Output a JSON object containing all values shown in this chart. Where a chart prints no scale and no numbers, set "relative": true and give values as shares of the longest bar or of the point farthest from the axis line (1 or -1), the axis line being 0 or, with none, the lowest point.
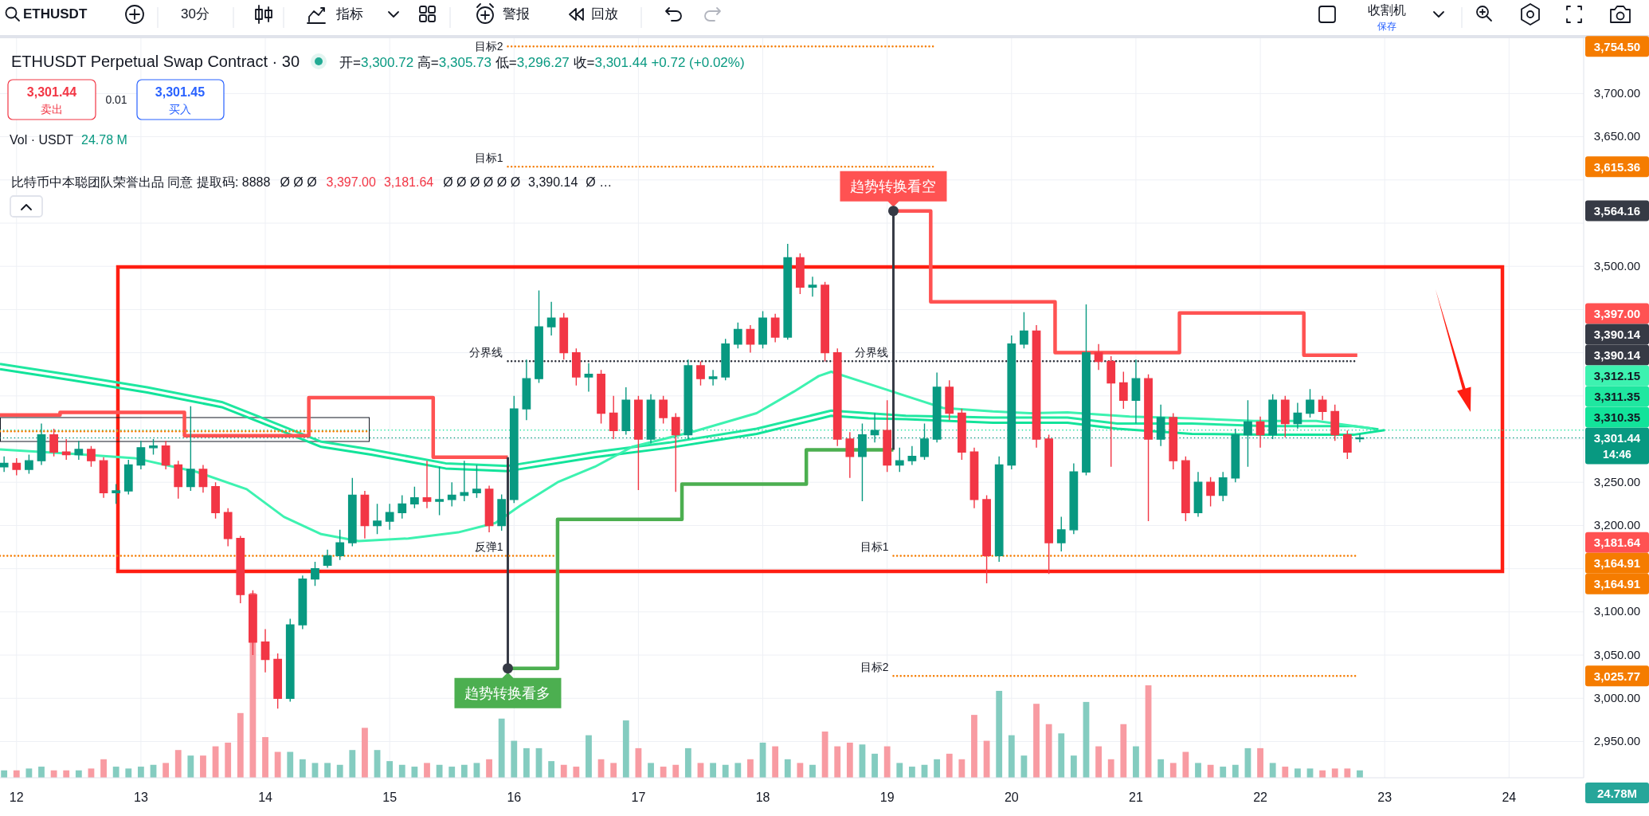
{
  "chart_data": [
    {
      "type": "candlestick",
      "title": "ETHUSDT Perpetual Swap Contract · 30",
      "subtitle": "开=3,300.72 高=3,305.73 低=3,296.27 收=3,301.44 +0.72 (+0.02%)",
      "xlim": [
        11.867,
        24.6
      ],
      "ylim": [
        2908,
        3764
      ],
      "xticks": [
        12,
        13,
        14,
        15,
        16,
        17,
        18,
        19,
        20,
        21,
        22,
        23,
        24
      ],
      "yticks": [
        {
          "value": 2950,
          "label": "2,950.00"
        },
        {
          "value": 3000,
          "label": "3,000.00"
        },
        {
          "value": 3050,
          "label": "3,050.00"
        },
        {
          "value": 3100,
          "label": "3,100.00"
        },
        {
          "value": 3150,
          "label": null
        },
        {
          "value": 3200,
          "label": "3,200.00"
        },
        {
          "value": 3250,
          "label": "3,250.00"
        },
        {
          "value": 3300,
          "label": null
        },
        {
          "value": 3350,
          "label": null
        },
        {
          "value": 3400,
          "label": null
        },
        {
          "value": 3450,
          "label": null
        },
        {
          "value": 3500,
          "label": "3,500.00"
        },
        {
          "value": 3550,
          "label": null
        },
        {
          "value": 3600,
          "label": null
        },
        {
          "value": 3650,
          "label": "3,650.00"
        },
        {
          "value": 3700,
          "label": "3,700.00"
        }
      ],
      "grid": true,
      "x": [
        11.9,
        12.0,
        12.1,
        12.2,
        12.3,
        12.4,
        12.5,
        12.6,
        12.7,
        12.8,
        12.9,
        13.0,
        13.1,
        13.2,
        13.3,
        13.4,
        13.5,
        13.6,
        13.7,
        13.8,
        13.9,
        14.0,
        14.1,
        14.2,
        14.3,
        14.4,
        14.5,
        14.6,
        14.7,
        14.8,
        14.9,
        15.0,
        15.1,
        15.2,
        15.3,
        15.4,
        15.5,
        15.6,
        15.7,
        15.8,
        15.9,
        16.0,
        16.1,
        16.2,
        16.3,
        16.4,
        16.5,
        16.6,
        16.7,
        16.8,
        16.9,
        17.0,
        17.1,
        17.2,
        17.3,
        17.4,
        17.5,
        17.6,
        17.7,
        17.8,
        17.9,
        18.0,
        18.1,
        18.2,
        18.3,
        18.4,
        18.5,
        18.6,
        18.7,
        18.8,
        18.9,
        19.0,
        19.1,
        19.2,
        19.3,
        19.4,
        19.5,
        19.6,
        19.7,
        19.8,
        19.9,
        20.0,
        20.1,
        20.2,
        20.3,
        20.4,
        20.5,
        20.6,
        20.7,
        20.8,
        20.9,
        21.0,
        21.1,
        21.2,
        21.3,
        21.4,
        21.5,
        21.6,
        21.7,
        21.8,
        21.9,
        22.0,
        22.1,
        22.2,
        22.3,
        22.4,
        22.5,
        22.6,
        22.7,
        22.8
      ],
      "ohlc": [
        [
          3268,
          3280,
          3262,
          3272
        ],
        [
          3272,
          3278,
          3258,
          3265
        ],
        [
          3265,
          3282,
          3260,
          3275
        ],
        [
          3275,
          3318,
          3270,
          3305
        ],
        [
          3305,
          3312,
          3280,
          3285
        ],
        [
          3285,
          3300,
          3276,
          3282
        ],
        [
          3282,
          3298,
          3276,
          3288
        ],
        [
          3288,
          3292,
          3268,
          3275
        ],
        [
          3275,
          3279,
          3232,
          3238
        ],
        [
          3238,
          3248,
          3225,
          3240
        ],
        [
          3240,
          3276,
          3236,
          3270
        ],
        [
          3270,
          3298,
          3265,
          3290
        ],
        [
          3290,
          3300,
          3282,
          3292
        ],
        [
          3292,
          3298,
          3265,
          3270
        ],
        [
          3270,
          3275,
          3231,
          3245
        ],
        [
          3245,
          3338,
          3240,
          3265
        ],
        [
          3265,
          3270,
          3238,
          3245
        ],
        [
          3245,
          3250,
          3208,
          3215
        ],
        [
          3215,
          3220,
          3176,
          3185
        ],
        [
          3185,
          3188,
          3110,
          3120
        ],
        [
          3120,
          3125,
          3050,
          3065
        ],
        [
          3065,
          3080,
          3030,
          3045
        ],
        [
          3045,
          3052,
          2988,
          3000
        ],
        [
          3000,
          3092,
          2996,
          3085
        ],
        [
          3085,
          3142,
          3080,
          3138
        ],
        [
          3138,
          3158,
          3130,
          3150
        ],
        [
          3154,
          3172,
          3151,
          3165
        ],
        [
          3165,
          3195,
          3160,
          3180
        ],
        [
          3180,
          3255,
          3176,
          3235
        ],
        [
          3235,
          3240,
          3185,
          3200
        ],
        [
          3200,
          3225,
          3190,
          3205
        ],
        [
          3205,
          3225,
          3195,
          3215
        ],
        [
          3215,
          3235,
          3208,
          3225
        ],
        [
          3225,
          3245,
          3220,
          3232
        ],
        [
          3232,
          3275,
          3220,
          3228
        ],
        [
          3228,
          3268,
          3212,
          3230
        ],
        [
          3230,
          3250,
          3222,
          3235
        ],
        [
          3235,
          3275,
          3228,
          3238
        ],
        [
          3238,
          3270,
          3232,
          3242
        ],
        [
          3242,
          3246,
          3192,
          3200
        ],
        [
          3200,
          3236,
          3194,
          3230
        ],
        [
          3230,
          3350,
          3226,
          3335
        ],
        [
          3335,
          3392,
          3322,
          3370
        ],
        [
          3370,
          3472,
          3365,
          3430
        ],
        [
          3430,
          3459,
          3420,
          3440
        ],
        [
          3440,
          3446,
          3392,
          3400
        ],
        [
          3400,
          3405,
          3362,
          3372
        ],
        [
          3372,
          3388,
          3355,
          3375
        ],
        [
          3375,
          3380,
          3318,
          3330
        ],
        [
          3330,
          3350,
          3300,
          3310
        ],
        [
          3310,
          3360,
          3305,
          3345
        ],
        [
          3345,
          3350,
          3241,
          3300
        ],
        [
          3300,
          3352,
          3295,
          3345
        ],
        [
          3345,
          3350,
          3318,
          3325
        ],
        [
          3325,
          3330,
          3239,
          3305
        ],
        [
          3305,
          3392,
          3300,
          3385
        ],
        [
          3385,
          3390,
          3362,
          3370
        ],
        [
          3370,
          3380,
          3362,
          3372
        ],
        [
          3372,
          3416,
          3368,
          3410
        ],
        [
          3410,
          3435,
          3405,
          3427
        ],
        [
          3427,
          3432,
          3400,
          3410
        ],
        [
          3410,
          3448,
          3405,
          3440
        ],
        [
          3440,
          3445,
          3412,
          3418
        ],
        [
          3418,
          3526,
          3415,
          3510
        ],
        [
          3510,
          3515,
          3468,
          3476
        ],
        [
          3476,
          3488,
          3465,
          3478
        ],
        [
          3478,
          3482,
          3390,
          3400
        ],
        [
          3400,
          3405,
          3292,
          3300
        ],
        [
          3300,
          3308,
          3255,
          3280
        ],
        [
          3280,
          3318,
          3228,
          3305
        ],
        [
          3305,
          3330,
          3296,
          3310
        ],
        [
          3310,
          3345,
          3262,
          3270
        ],
        [
          3270,
          3290,
          3262,
          3275
        ],
        [
          3275,
          3292,
          3270,
          3280
        ],
        [
          3280,
          3318,
          3276,
          3300
        ],
        [
          3300,
          3377,
          3296,
          3360
        ],
        [
          3360,
          3368,
          3322,
          3330
        ],
        [
          3330,
          3335,
          3276,
          3285
        ],
        [
          3285,
          3290,
          3220,
          3230
        ],
        [
          3230,
          3235,
          3133,
          3165
        ],
        [
          3165,
          3280,
          3158,
          3270
        ],
        [
          3270,
          3420,
          3265,
          3410
        ],
        [
          3410,
          3447,
          3405,
          3425
        ],
        [
          3425,
          3432,
          3290,
          3300
        ],
        [
          3300,
          3305,
          3144,
          3180
        ],
        [
          3180,
          3210,
          3170,
          3195
        ],
        [
          3195,
          3272,
          3190,
          3262
        ],
        [
          3262,
          3456,
          3258,
          3400
        ],
        [
          3400,
          3410,
          3380,
          3390
        ],
        [
          3390,
          3396,
          3268,
          3365
        ],
        [
          3365,
          3378,
          3335,
          3345
        ],
        [
          3345,
          3392,
          3318,
          3370
        ],
        [
          3370,
          3375,
          3205,
          3300
        ],
        [
          3300,
          3340,
          3292,
          3325
        ],
        [
          3325,
          3330,
          3265,
          3275
        ],
        [
          3275,
          3280,
          3205,
          3215
        ],
        [
          3215,
          3262,
          3210,
          3250
        ],
        [
          3250,
          3256,
          3222,
          3235
        ],
        [
          3235,
          3262,
          3228,
          3255
        ],
        [
          3255,
          3312,
          3250,
          3305
        ],
        [
          3305,
          3345,
          3268,
          3320
        ],
        [
          3320,
          3326,
          3290,
          3305
        ],
        [
          3305,
          3352,
          3300,
          3345
        ],
        [
          3345,
          3350,
          3302,
          3318
        ],
        [
          3318,
          3342,
          3312,
          3330
        ],
        [
          3330,
          3358,
          3325,
          3345
        ],
        [
          3345,
          3350,
          3322,
          3332
        ],
        [
          3332,
          3340,
          3298,
          3305
        ],
        [
          3305,
          3310,
          3277,
          3285
        ],
        [
          3300.72,
          3305.73,
          3296.27,
          3301.44
        ]
      ],
      "colors": [
        "#089981",
        "#f23645",
        "#089981",
        "#089981",
        "#f23645",
        "#f23645",
        "#089981",
        "#f23645",
        "#f23645",
        "#089981",
        "#089981",
        "#089981",
        "#089981",
        "#f23645",
        "#f23645",
        "#089981",
        "#f23645",
        "#f23645",
        "#f23645",
        "#f23645",
        "#f23645",
        "#f23645",
        "#f23645",
        "#089981",
        "#089981",
        "#089981",
        "#089981",
        "#089981",
        "#089981",
        "#f23645",
        "#089981",
        "#089981",
        "#089981",
        "#089981",
        "#f23645",
        "#089981",
        "#089981",
        "#089981",
        "#089981",
        "#f23645",
        "#089981",
        "#089981",
        "#089981",
        "#089981",
        "#089981",
        "#f23645",
        "#f23645",
        "#089981",
        "#f23645",
        "#f23645",
        "#089981",
        "#f23645",
        "#089981",
        "#f23645",
        "#f23645",
        "#089981",
        "#f23645",
        "#089981",
        "#089981",
        "#089981",
        "#f23645",
        "#089981",
        "#f23645",
        "#089981",
        "#f23645",
        "#089981",
        "#f23645",
        "#f23645",
        "#f23645",
        "#089981",
        "#089981",
        "#f23645",
        "#089981",
        "#089981",
        "#089981",
        "#089981",
        "#f23645",
        "#f23645",
        "#f23645",
        "#f23645",
        "#089981",
        "#089981",
        "#089981",
        "#f23645",
        "#f23645",
        "#089981",
        "#089981",
        "#089981",
        "#f23645",
        "#f23645",
        "#f23645",
        "#089981",
        "#f23645",
        "#089981",
        "#f23645",
        "#f23645",
        "#089981",
        "#f23645",
        "#089981",
        "#089981",
        "#089981",
        "#f23645",
        "#089981",
        "#f23645",
        "#089981",
        "#089981",
        "#f23645",
        "#f23645",
        "#f23645",
        "#089981"
      ],
      "series": [
        {
          "type": "line",
          "color": "#12e39a",
          "x": [
            11.867,
            12.45,
            13.05,
            13.65,
            13.95,
            14.45,
            14.85,
            15.45,
            15.95,
            16.65,
            17.25,
            17.95,
            18.55,
            18.85,
            19.15,
            19.85,
            20.45,
            20.85,
            21.45,
            22.05,
            22.75,
            23.0
          ],
          "values": [
            3381,
            3368,
            3354,
            3337,
            3320,
            3291,
            3282,
            3266,
            3263,
            3279,
            3290,
            3306,
            3327,
            3324,
            3323,
            3319,
            3319,
            3312,
            3306,
            3305,
            3305,
            3310.35
          ]
        },
        {
          "type": "line",
          "color": "#1fe7a0",
          "x": [
            11.867,
            12.45,
            13.05,
            13.65,
            13.95,
            14.45,
            14.85,
            15.45,
            15.95,
            16.65,
            17.25,
            17.95,
            18.55,
            18.85,
            19.15,
            19.85,
            20.45,
            20.85,
            21.45,
            22.05,
            22.75,
            22.95
          ],
          "values": [
            3387,
            3374,
            3360,
            3343,
            3326,
            3297,
            3288,
            3272,
            3269,
            3285,
            3296,
            3312,
            3333,
            3330,
            3327,
            3325,
            3325,
            3318,
            3318,
            3315,
            3315,
            3311.35
          ]
        },
        {
          "type": "line",
          "color": "#3df2b0",
          "x": [
            11.867,
            12.45,
            12.95,
            13.45,
            13.85,
            14.15,
            14.45,
            14.75,
            15.15,
            15.55,
            15.85,
            16.05,
            16.35,
            16.65,
            16.95,
            17.45,
            17.95,
            18.25,
            18.45,
            18.55,
            18.85,
            19.15,
            19.45,
            19.85,
            20.15,
            20.45,
            20.95,
            21.45,
            21.95,
            22.45,
            22.9
          ],
          "values": [
            3288,
            3283,
            3278,
            3262,
            3242,
            3210,
            3190,
            3182,
            3185,
            3192,
            3203,
            3223,
            3250,
            3268,
            3291,
            3309,
            3330,
            3355,
            3373,
            3378,
            3364,
            3350,
            3336,
            3332,
            3330,
            3331,
            3326,
            3324,
            3321,
            3321,
            3312.15
          ]
        },
        {
          "type": "step",
          "color": "#ff5252",
          "x": [
            11.867,
            12.35,
            13.35,
            14.35,
            15.35,
            15.95
          ],
          "values": [
            3328,
            3331,
            3304,
            3348,
            3279,
            3279
          ]
        },
        {
          "type": "step",
          "color": "#ff5252",
          "x": [
            19.05,
            19.35,
            20.35,
            21.35,
            22.35,
            22.78
          ],
          "values": [
            3564.16,
            3459,
            3400,
            3446,
            3397,
            3397
          ]
        },
        {
          "type": "step",
          "color": "#4caf50",
          "x": [
            15.95,
            16.35,
            17.35,
            18.35,
            19.05
          ],
          "values": [
            3034.7,
            3207,
            3248,
            3287.5,
            3287.5
          ]
        },
        {
          "type": "line",
          "color": "#363a45",
          "x": [
            15.95,
            15.95
          ],
          "values": [
            3279,
            3034.7
          ]
        },
        {
          "type": "line",
          "color": "#363a45",
          "x": [
            19.05,
            19.05
          ],
          "values": [
            3287.5,
            3564.16
          ]
        },
        {
          "type": "line",
          "name": "分界线",
          "color": "#2a2e39",
          "line_style": "dotted",
          "x": [
            15.95,
            19.05,
            22.78
          ],
          "values": [
            3390.14,
            3390.14,
            3390.14
          ]
        },
        {
          "type": "line",
          "name": "反弹1",
          "color": "#f57c00",
          "line_style": "dotted",
          "x": [
            11.867,
            15.95,
            16.32
          ],
          "values": [
            3164.91,
            3164.91,
            3164.91
          ]
        },
        {
          "type": "line",
          "name": "目标1",
          "color": "#f57c00",
          "line_style": "dotted",
          "x": [
            19.05,
            22.78
          ],
          "values": [
            3164.91,
            3164.91
          ]
        },
        {
          "type": "line",
          "name": "目标2",
          "color": "#f57c00",
          "line_style": "dotted",
          "x": [
            19.05,
            22.78
          ],
          "values": [
            3025.77,
            3025.77
          ]
        },
        {
          "type": "line",
          "name": "目标2",
          "color": "#f57c00",
          "line_style": "dotted",
          "x": [
            15.95,
            19.37
          ],
          "values": [
            3754.5,
            3754.5
          ]
        },
        {
          "type": "line",
          "name": "目标1",
          "color": "#f57c00",
          "line_style": "dotted",
          "x": [
            15.95,
            19.37
          ],
          "values": [
            3615.36,
            3615.36
          ]
        },
        {
          "type": "line",
          "color": "#f57c00",
          "line_style": "dotted",
          "x": [
            11.867,
            14.84
          ],
          "values": [
            3309,
            3309
          ]
        }
      ],
      "ref_lines": [
        {
          "axis": "y",
          "value": 3301.44,
          "label": "3,301.44",
          "color": "#089981",
          "line_style": "dotted"
        },
        {
          "axis": "y",
          "value": 3310.35,
          "label": "3,310.35",
          "color": "#12e39a",
          "line_style": "dotted"
        }
      ],
      "annotations": [
        "ETHUSDT",
        "30分",
        "指标",
        "警报",
        "回放",
        "收割机",
        "保存",
        "3,301.44",
        "卖出",
        "0.01",
        "3,301.45",
        "买入",
        "Vol · USDT",
        "24.78 M",
        "比特币中本聪团队荣誉出品 同意 提取码: 8888",
        "Ø Ø Ø",
        "3,397.00",
        "3,181.64",
        "Ø Ø Ø Ø Ø Ø",
        "3,390.14",
        "Ø …",
        "14:46",
        "24.78M",
        "3,754.50",
        "3,615.36",
        "3,564.16",
        "3,397.00",
        "3,390.14",
        "3,390.14",
        "3,312.15",
        "3,311.35",
        "3,181.64",
        "3,164.91",
        "3,164.91",
        "3,025.77",
        "趋势转换看多",
        "趋势转换看空",
        "分界线"
      ]
    },
    {
      "type": "bar",
      "relative": true,
      "xlim": [
        11.867,
        24.6
      ],
      "x": [
        11.9,
        12.0,
        12.1,
        12.2,
        12.3,
        12.4,
        12.5,
        12.6,
        12.7,
        12.8,
        12.9,
        13.0,
        13.1,
        13.2,
        13.3,
        13.4,
        13.5,
        13.6,
        13.7,
        13.8,
        13.9,
        14.0,
        14.1,
        14.2,
        14.3,
        14.4,
        14.5,
        14.6,
        14.7,
        14.8,
        14.9,
        15.0,
        15.1,
        15.2,
        15.3,
        15.4,
        15.5,
        15.6,
        15.7,
        15.8,
        15.9,
        16.0,
        16.1,
        16.2,
        16.3,
        16.4,
        16.5,
        16.6,
        16.7,
        16.8,
        16.9,
        17.0,
        17.1,
        17.2,
        17.3,
        17.4,
        17.5,
        17.6,
        17.7,
        17.8,
        17.9,
        18.0,
        18.1,
        18.2,
        18.3,
        18.4,
        18.5,
        18.6,
        18.7,
        18.8,
        18.9,
        19.0,
        19.1,
        19.2,
        19.3,
        19.4,
        19.5,
        19.6,
        19.7,
        19.8,
        19.9,
        20.0,
        20.1,
        20.2,
        20.3,
        20.4,
        20.5,
        20.6,
        20.7,
        20.8,
        20.9,
        21.0,
        21.1,
        21.2,
        21.3,
        21.4,
        21.5,
        21.6,
        21.7,
        21.8,
        21.9,
        22.0,
        22.1,
        22.2,
        22.3,
        22.4,
        22.5,
        22.6,
        22.7,
        22.8
      ],
      "values": [
        0.04,
        0.04,
        0.05,
        0.06,
        0.04,
        0.04,
        0.04,
        0.05,
        0.1,
        0.06,
        0.05,
        0.06,
        0.07,
        0.08,
        0.15,
        0.12,
        0.12,
        0.17,
        0.19,
        0.35,
        1,
        0.22,
        0.14,
        0.14,
        0.1,
        0.08,
        0.08,
        0.07,
        0.15,
        0.27,
        0.15,
        0.09,
        0.07,
        0.06,
        0.08,
        0.07,
        0.06,
        0.07,
        0.08,
        0.1,
        0.32,
        0.2,
        0.16,
        0.16,
        0.09,
        0.07,
        0.06,
        0.23,
        0.1,
        0.08,
        0.31,
        0.16,
        0.08,
        0.06,
        0.07,
        0.16,
        0.08,
        0.08,
        0.07,
        0.08,
        0.1,
        0.19,
        0.17,
        0.1,
        0.08,
        0.07,
        0.25,
        0.17,
        0.19,
        0.18,
        0.13,
        0.17,
        0.08,
        0.06,
        0.07,
        0.1,
        0.13,
        0.1,
        0.34,
        0.2,
        0.47,
        0.23,
        0.12,
        0.4,
        0.29,
        0.24,
        0.12,
        0.41,
        0.17,
        0.1,
        0.29,
        0.17,
        0.5,
        0.1,
        0.08,
        0.14,
        0.08,
        0.07,
        0.06,
        0.07,
        0.16,
        0.16,
        0.08,
        0.06,
        0.05,
        0.05,
        0.04,
        0.05,
        0.05,
        0.04
      ],
      "colors": [
        "#84ccc0",
        "#f89ba2",
        "#84ccc0",
        "#84ccc0",
        "#f89ba2",
        "#f89ba2",
        "#84ccc0",
        "#f89ba2",
        "#f89ba2",
        "#84ccc0",
        "#84ccc0",
        "#84ccc0",
        "#84ccc0",
        "#f89ba2",
        "#f89ba2",
        "#84ccc0",
        "#f89ba2",
        "#f89ba2",
        "#f89ba2",
        "#f89ba2",
        "#f89ba2",
        "#f89ba2",
        "#f89ba2",
        "#84ccc0",
        "#84ccc0",
        "#84ccc0",
        "#84ccc0",
        "#84ccc0",
        "#84ccc0",
        "#f89ba2",
        "#84ccc0",
        "#84ccc0",
        "#84ccc0",
        "#84ccc0",
        "#f89ba2",
        "#84ccc0",
        "#84ccc0",
        "#84ccc0",
        "#84ccc0",
        "#f89ba2",
        "#84ccc0",
        "#84ccc0",
        "#84ccc0",
        "#84ccc0",
        "#84ccc0",
        "#f89ba2",
        "#f89ba2",
        "#84ccc0",
        "#f89ba2",
        "#f89ba2",
        "#84ccc0",
        "#f89ba2",
        "#84ccc0",
        "#f89ba2",
        "#f89ba2",
        "#84ccc0",
        "#f89ba2",
        "#84ccc0",
        "#84ccc0",
        "#84ccc0",
        "#f89ba2",
        "#84ccc0",
        "#f89ba2",
        "#84ccc0",
        "#f89ba2",
        "#84ccc0",
        "#f89ba2",
        "#f89ba2",
        "#f89ba2",
        "#84ccc0",
        "#84ccc0",
        "#f89ba2",
        "#84ccc0",
        "#84ccc0",
        "#84ccc0",
        "#84ccc0",
        "#f89ba2",
        "#f89ba2",
        "#f89ba2",
        "#f89ba2",
        "#84ccc0",
        "#84ccc0",
        "#84ccc0",
        "#f89ba2",
        "#f89ba2",
        "#84ccc0",
        "#84ccc0",
        "#84ccc0",
        "#f89ba2",
        "#f89ba2",
        "#f89ba2",
        "#84ccc0",
        "#f89ba2",
        "#84ccc0",
        "#f89ba2",
        "#f89ba2",
        "#84ccc0",
        "#f89ba2",
        "#84ccc0",
        "#84ccc0",
        "#84ccc0",
        "#f89ba2",
        "#84ccc0",
        "#f89ba2",
        "#84ccc0",
        "#84ccc0",
        "#f89ba2",
        "#f89ba2",
        "#f89ba2",
        "#84ccc0"
      ]
    }
  ]
}
